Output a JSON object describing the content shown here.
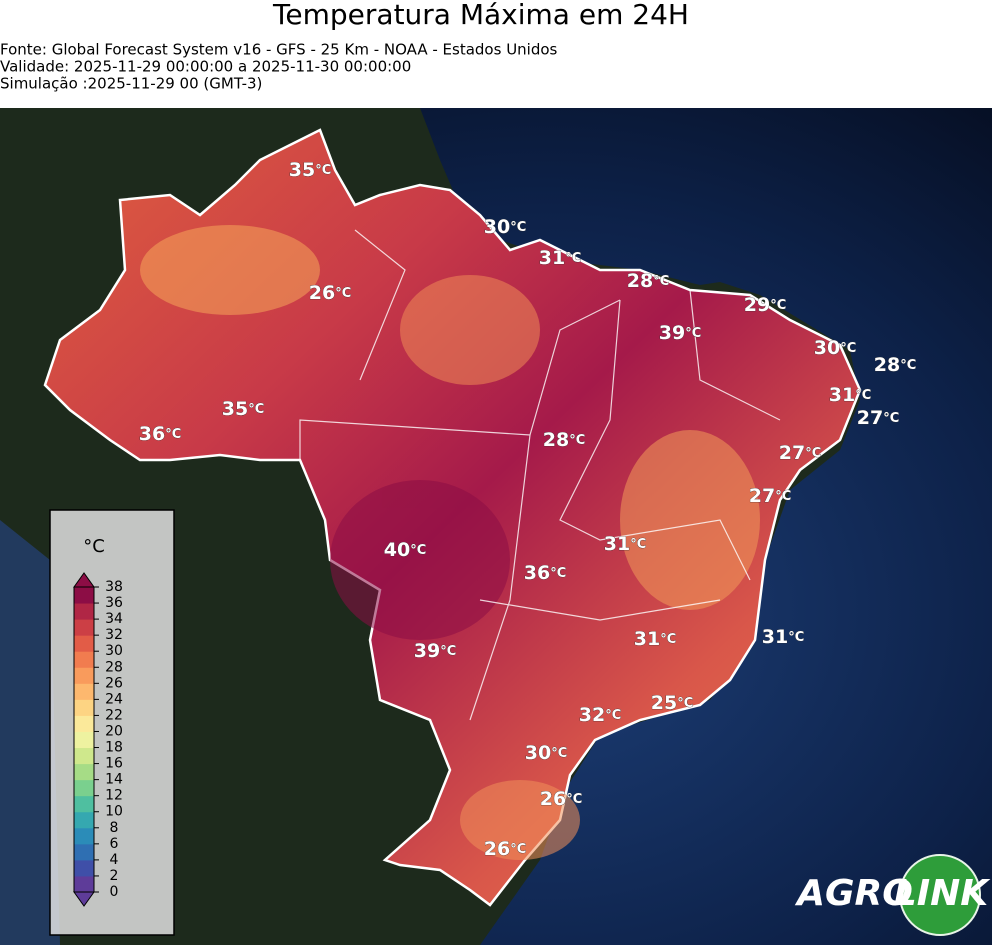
{
  "header": {
    "title": "Temperatura Máxima em 24H",
    "source": "Fonte: Global Forecast System v16 - GFS - 25 Km - NOAA - Estados Unidos",
    "validity": "Validade: 2025-11-29 00:00:00 a 2025-11-30 00:00:00",
    "simulation": "Simulação :2025-11-29 00 (GMT-3)"
  },
  "unit": "°C",
  "labels": [
    35,
    30,
    31,
    28,
    29,
    26,
    39,
    30,
    28,
    31,
    35,
    27,
    36,
    28,
    27,
    27,
    31,
    40,
    36,
    31,
    31,
    39,
    25,
    32,
    30,
    26,
    26
  ],
  "colorbar": {
    "label": "°C",
    "ticks": [
      0,
      2,
      4,
      6,
      8,
      10,
      12,
      14,
      16,
      18,
      20,
      22,
      24,
      26,
      28,
      30,
      32,
      34,
      36,
      38
    ],
    "colors": [
      "#5e3c99",
      "#3f4fa8",
      "#2f6fb2",
      "#2b8cb8",
      "#35a8b0",
      "#4fbfa0",
      "#7ad08e",
      "#a6dc86",
      "#cfe88c",
      "#eef2a0",
      "#fbe99a",
      "#fdd483",
      "#fdb86e",
      "#f99b5c",
      "#f17c4f",
      "#e25c47",
      "#cc3f45",
      "#b02645",
      "#8c0d45"
    ]
  },
  "logo": {
    "left": "AGRO",
    "right": "LINK"
  }
}
